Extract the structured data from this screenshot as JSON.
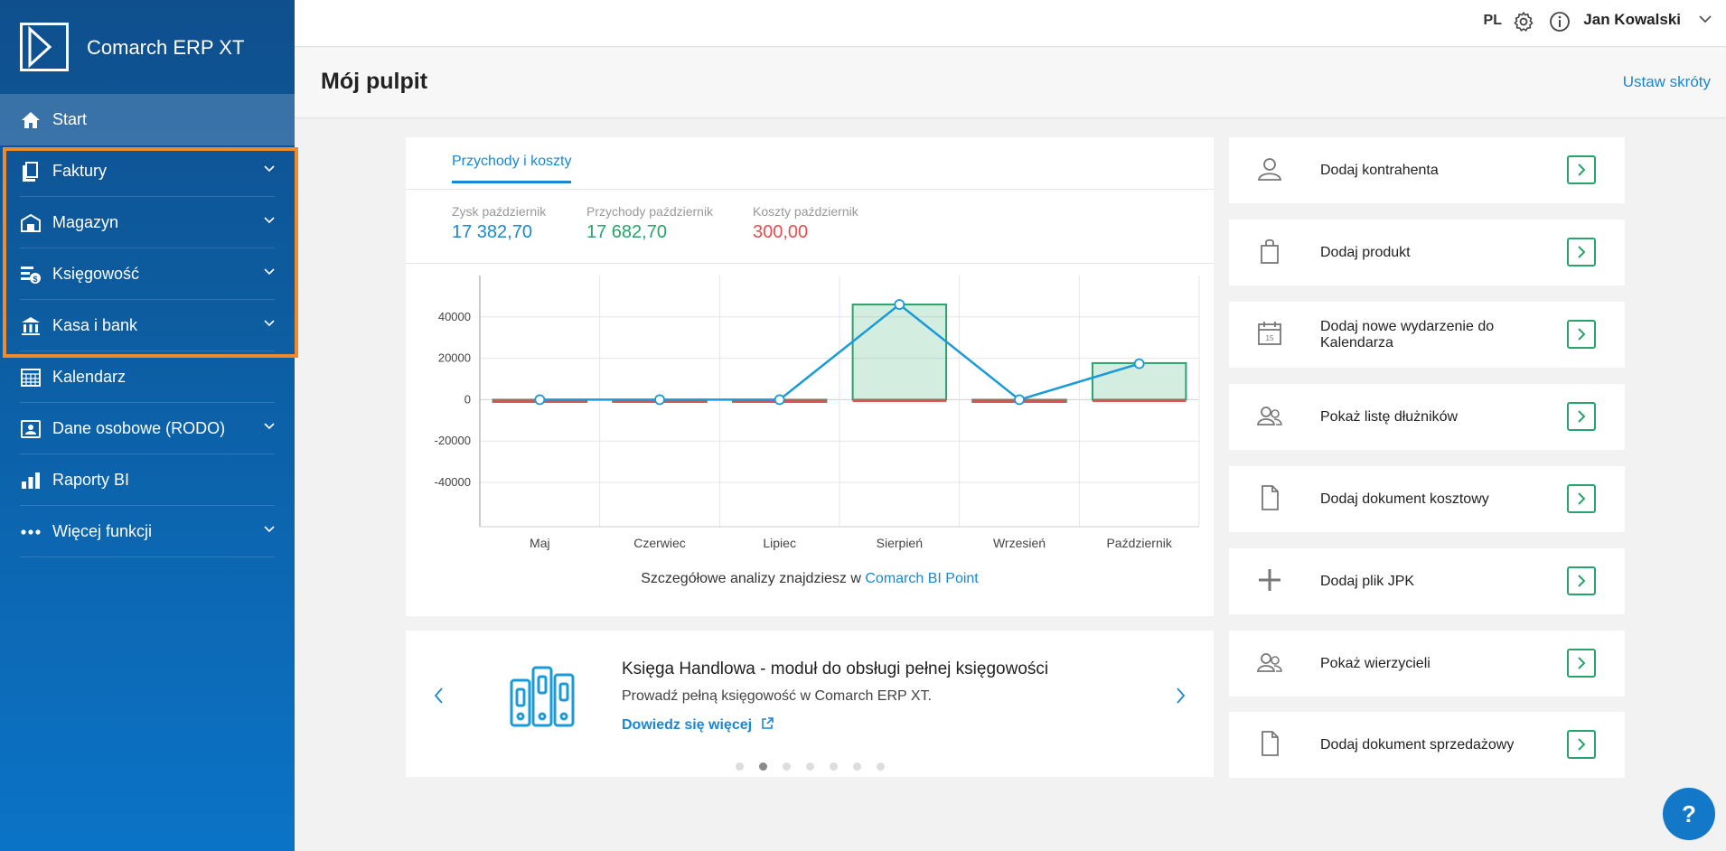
{
  "app": {
    "name": "Comarch ERP XT"
  },
  "sidebar": {
    "items": [
      {
        "label": "Start",
        "icon": "home-icon"
      },
      {
        "label": "Faktury",
        "icon": "invoice-icon"
      },
      {
        "label": "Magazyn",
        "icon": "warehouse-icon"
      },
      {
        "label": "Księgowość",
        "icon": "accounting-icon"
      },
      {
        "label": "Kasa i bank",
        "icon": "bank-icon"
      },
      {
        "label": "Kalendarz",
        "icon": "calendar-icon"
      },
      {
        "label": "Dane osobowe (RODO)",
        "icon": "id-card-icon"
      },
      {
        "label": "Raporty BI",
        "icon": "bar-chart-icon"
      },
      {
        "label": "Więcej funkcji",
        "icon": "more-dots-icon"
      }
    ]
  },
  "topbar": {
    "lang": "PL",
    "user": "Jan Kowalski"
  },
  "page": {
    "title": "Mój pulpit",
    "shortcuts": "Ustaw skróty"
  },
  "summary": {
    "tab": "Przychody i koszty",
    "stats": [
      {
        "label": "Zysk październik",
        "value": "17 382,70",
        "color": "#1a88d0"
      },
      {
        "label": "Przychody październik",
        "value": "17 682,70",
        "color": "#27a36b"
      },
      {
        "label": "Koszty październik",
        "value": "300,00",
        "color": "#e84c4c"
      }
    ],
    "note_prefix": "Szczegółowe analizy znajdziesz w",
    "note_link": "Comarch BI Point"
  },
  "chart_data": {
    "type": "bar",
    "categories": [
      "Maj",
      "Czerwiec",
      "Lipiec",
      "Sierpień",
      "Wrzesień",
      "Październik"
    ],
    "series": [
      {
        "values": [
          0,
          0,
          0,
          46000,
          0,
          17682.7
        ],
        "color": "#27a36b"
      },
      {
        "values": [
          0,
          0,
          0,
          0,
          0,
          -300
        ],
        "color": "#e84c4c"
      },
      {
        "values": [
          0,
          0,
          0,
          46000,
          0,
          17382.7
        ],
        "color": "#1a9bd8",
        "render": "line"
      }
    ],
    "yticks": [
      40000,
      20000,
      0,
      -20000,
      -40000
    ],
    "ylim": [
      -57000,
      60000
    ],
    "grid": true
  },
  "promo": {
    "title": "Księga Handlowa - moduł do obsługi pełnej księgowości",
    "desc": "Prowadź pełną księgowość w Comarch ERP XT.",
    "link": "Dowiedz się więcej",
    "dots": 7,
    "active_dot": 1
  },
  "actions": [
    {
      "label": "Dodaj kontrahenta",
      "icon": "person-icon"
    },
    {
      "label": "Dodaj produkt",
      "icon": "bag-icon"
    },
    {
      "label": "Dodaj nowe wydarzenie do Kalendarza",
      "icon": "calendar-event-icon"
    },
    {
      "label": "Pokaż listę dłużników",
      "icon": "people-icon"
    },
    {
      "label": "Dodaj dokument kosztowy",
      "icon": "document-icon"
    },
    {
      "label": "Dodaj plik JPK",
      "icon": "plus-icon"
    },
    {
      "label": "Pokaż wierzycieli",
      "icon": "people-icon"
    },
    {
      "label": "Dodaj dokument sprzedażowy",
      "icon": "document-icon"
    }
  ],
  "help": {
    "label": "?"
  }
}
